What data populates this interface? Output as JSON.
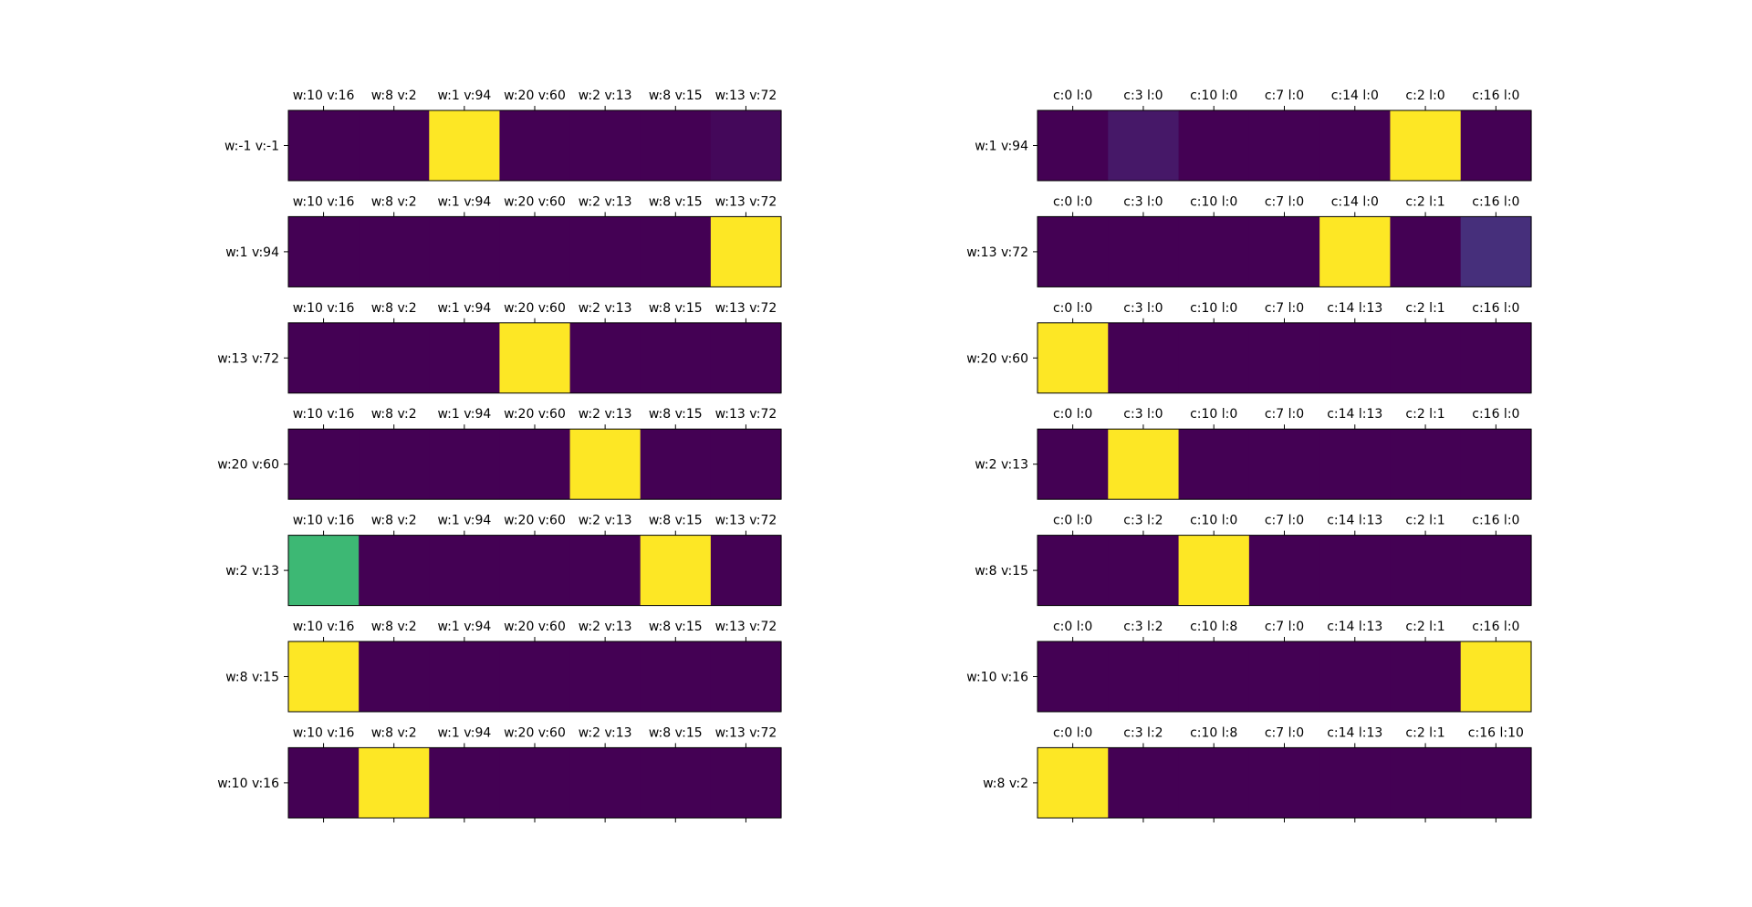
{
  "chart_data": [
    {
      "type": "heatmap",
      "panel": "left",
      "colormap": "viridis",
      "rows": [
        {
          "ylabel": "w:-1 v:-1",
          "xticks": [
            "w:10 v:16",
            "w:8 v:2",
            "w:1 v:94",
            "w:20 v:60",
            "w:2 v:13",
            "w:8 v:15",
            "w:13 v:72"
          ],
          "values": [
            0,
            0,
            1,
            0,
            0,
            0,
            0.02
          ]
        },
        {
          "ylabel": "w:1 v:94",
          "xticks": [
            "w:10 v:16",
            "w:8 v:2",
            "w:1 v:94",
            "w:20 v:60",
            "w:2 v:13",
            "w:8 v:15",
            "w:13 v:72"
          ],
          "values": [
            0,
            0,
            0,
            0,
            0,
            0,
            1
          ]
        },
        {
          "ylabel": "w:13 v:72",
          "xticks": [
            "w:10 v:16",
            "w:8 v:2",
            "w:1 v:94",
            "w:20 v:60",
            "w:2 v:13",
            "w:8 v:15",
            "w:13 v:72"
          ],
          "values": [
            0,
            0,
            0,
            1,
            0,
            0,
            0
          ]
        },
        {
          "ylabel": "w:20 v:60",
          "xticks": [
            "w:10 v:16",
            "w:8 v:2",
            "w:1 v:94",
            "w:20 v:60",
            "w:2 v:13",
            "w:8 v:15",
            "w:13 v:72"
          ],
          "values": [
            0,
            0,
            0,
            0,
            1,
            0,
            0
          ]
        },
        {
          "ylabel": "w:2 v:13",
          "xticks": [
            "w:10 v:16",
            "w:8 v:2",
            "w:1 v:94",
            "w:20 v:60",
            "w:2 v:13",
            "w:8 v:15",
            "w:13 v:72"
          ],
          "values": [
            0.68,
            0,
            0,
            0,
            0,
            1,
            0
          ]
        },
        {
          "ylabel": "w:8 v:15",
          "xticks": [
            "w:10 v:16",
            "w:8 v:2",
            "w:1 v:94",
            "w:20 v:60",
            "w:2 v:13",
            "w:8 v:15",
            "w:13 v:72"
          ],
          "values": [
            1,
            0,
            0,
            0,
            0,
            0,
            0
          ]
        },
        {
          "ylabel": "w:10 v:16",
          "xticks": [
            "w:10 v:16",
            "w:8 v:2",
            "w:1 v:94",
            "w:20 v:60",
            "w:2 v:13",
            "w:8 v:15",
            "w:13 v:72"
          ],
          "values": [
            0,
            1,
            0,
            0,
            0,
            0,
            0
          ]
        }
      ]
    },
    {
      "type": "heatmap",
      "panel": "right",
      "colormap": "viridis",
      "rows": [
        {
          "ylabel": "w:1 v:94",
          "xticks": [
            "c:0 l:0",
            "c:3 l:0",
            "c:10 l:0",
            "c:7 l:0",
            "c:14 l:0",
            "c:2 l:0",
            "c:16 l:0"
          ],
          "values": [
            0,
            0.07,
            0,
            0,
            0,
            1,
            0
          ]
        },
        {
          "ylabel": "w:13 v:72",
          "xticks": [
            "c:0 l:0",
            "c:3 l:0",
            "c:10 l:0",
            "c:7 l:0",
            "c:14 l:0",
            "c:2 l:1",
            "c:16 l:0"
          ],
          "values": [
            0,
            0,
            0,
            0,
            1,
            0,
            0.14
          ]
        },
        {
          "ylabel": "w:20 v:60",
          "xticks": [
            "c:0 l:0",
            "c:3 l:0",
            "c:10 l:0",
            "c:7 l:0",
            "c:14 l:13",
            "c:2 l:1",
            "c:16 l:0"
          ],
          "values": [
            1,
            0,
            0,
            0,
            0,
            0,
            0
          ]
        },
        {
          "ylabel": "w:2 v:13",
          "xticks": [
            "c:0 l:0",
            "c:3 l:0",
            "c:10 l:0",
            "c:7 l:0",
            "c:14 l:13",
            "c:2 l:1",
            "c:16 l:0"
          ],
          "values": [
            0,
            1,
            0,
            0,
            0,
            0,
            0
          ]
        },
        {
          "ylabel": "w:8 v:15",
          "xticks": [
            "c:0 l:0",
            "c:3 l:2",
            "c:10 l:0",
            "c:7 l:0",
            "c:14 l:13",
            "c:2 l:1",
            "c:16 l:0"
          ],
          "values": [
            0,
            0,
            1,
            0,
            0,
            0,
            0
          ]
        },
        {
          "ylabel": "w:10 v:16",
          "xticks": [
            "c:0 l:0",
            "c:3 l:2",
            "c:10 l:8",
            "c:7 l:0",
            "c:14 l:13",
            "c:2 l:1",
            "c:16 l:0"
          ],
          "values": [
            0,
            0,
            0,
            0,
            0,
            0,
            1
          ]
        },
        {
          "ylabel": "w:8 v:2",
          "xticks": [
            "c:0 l:0",
            "c:3 l:2",
            "c:10 l:8",
            "c:7 l:0",
            "c:14 l:13",
            "c:2 l:1",
            "c:16 l:10"
          ],
          "values": [
            1,
            0,
            0,
            0,
            0,
            0,
            0
          ]
        }
      ]
    }
  ]
}
